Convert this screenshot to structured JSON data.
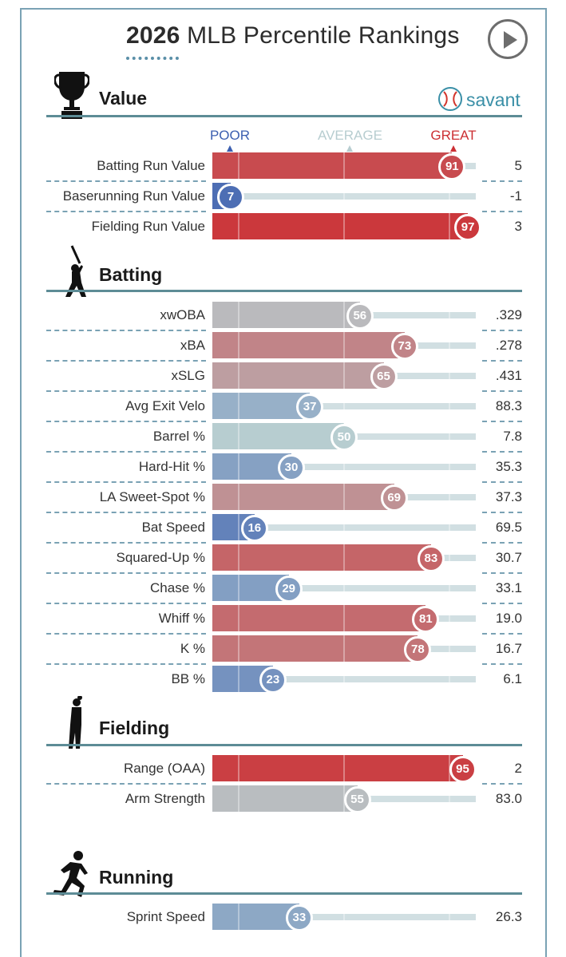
{
  "header": {
    "title_year": "2026",
    "title_rest": "MLB Percentile Rankings",
    "brand": "savant"
  },
  "colors": {
    "accent": "#3a8fa7",
    "section_line": "#5d8c96",
    "poor": "#3c5fb0",
    "average": "#b7cdd0",
    "great": "#cc2f33"
  },
  "scale_labels": {
    "poor": "POOR",
    "average": "AVERAGE",
    "great": "GREAT"
  },
  "icons": {
    "value": "trophy-icon",
    "batting": "batter-icon",
    "fielding": "fielder-icon",
    "running": "runner-icon",
    "play": "play-icon",
    "brand": "baseball-icon"
  },
  "chart_data": {
    "type": "bar",
    "title": "2026 MLB Percentile Rankings",
    "xlim": [
      0,
      100
    ],
    "sections": [
      {
        "name": "Value",
        "metrics": [
          {
            "label": "Batting Run Value",
            "percentile": 91,
            "raw": "5"
          },
          {
            "label": "Baserunning Run Value",
            "percentile": 7,
            "raw": "-1"
          },
          {
            "label": "Fielding Run Value",
            "percentile": 97,
            "raw": "3"
          }
        ]
      },
      {
        "name": "Batting",
        "metrics": [
          {
            "label": "xwOBA",
            "percentile": 56,
            "raw": ".329"
          },
          {
            "label": "xBA",
            "percentile": 73,
            "raw": ".278"
          },
          {
            "label": "xSLG",
            "percentile": 65,
            "raw": ".431"
          },
          {
            "label": "Avg Exit Velo",
            "percentile": 37,
            "raw": "88.3"
          },
          {
            "label": "Barrel %",
            "percentile": 50,
            "raw": "7.8"
          },
          {
            "label": "Hard-Hit %",
            "percentile": 30,
            "raw": "35.3"
          },
          {
            "label": "LA Sweet-Spot %",
            "percentile": 69,
            "raw": "37.3"
          },
          {
            "label": "Bat Speed",
            "percentile": 16,
            "raw": "69.5"
          },
          {
            "label": "Squared-Up %",
            "percentile": 83,
            "raw": "30.7"
          },
          {
            "label": "Chase %",
            "percentile": 29,
            "raw": "33.1"
          },
          {
            "label": "Whiff %",
            "percentile": 81,
            "raw": "19.0"
          },
          {
            "label": "K %",
            "percentile": 78,
            "raw": "16.7"
          },
          {
            "label": "BB %",
            "percentile": 23,
            "raw": "6.1"
          }
        ]
      },
      {
        "name": "Fielding",
        "metrics": [
          {
            "label": "Range (OAA)",
            "percentile": 95,
            "raw": "2"
          },
          {
            "label": "Arm Strength",
            "percentile": 55,
            "raw": "83.0"
          }
        ]
      },
      {
        "name": "Running",
        "metrics": [
          {
            "label": "Sprint Speed",
            "percentile": 33,
            "raw": "26.3"
          }
        ]
      }
    ]
  }
}
